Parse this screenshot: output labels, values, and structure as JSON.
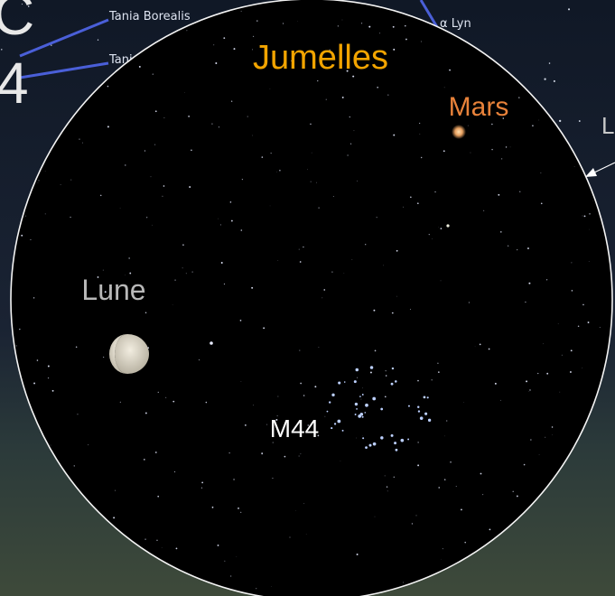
{
  "labels": {
    "corner_letter": "C",
    "corner_number": "4",
    "star_1": "Tania Borealis",
    "star_2": "Tani",
    "star_3": "α Lyn",
    "field_title": "Jumelles",
    "planet": "Mars",
    "right_label": "L",
    "moon": "Lune",
    "cluster": "M44"
  }
}
